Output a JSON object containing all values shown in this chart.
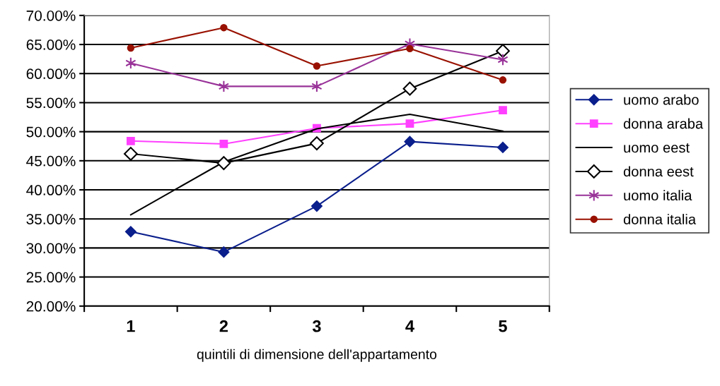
{
  "chart_data": {
    "type": "line",
    "xlabel": "quintili di dimensione dell'appartamento",
    "categories": [
      "1",
      "2",
      "3",
      "4",
      "5"
    ],
    "series": [
      {
        "name": "uomo arabo",
        "color": "#0a1e8c",
        "marker": "diamond",
        "values": [
          32.8,
          29.3,
          37.2,
          48.3,
          47.3
        ]
      },
      {
        "name": "donna araba",
        "color": "#ff40ff",
        "marker": "square",
        "values": [
          48.4,
          47.9,
          50.6,
          51.4,
          53.7
        ]
      },
      {
        "name": "uomo eest",
        "color": "#000000",
        "marker": "none",
        "values": [
          35.7,
          44.8,
          50.5,
          53.0,
          50.1
        ]
      },
      {
        "name": "donna eest",
        "color": "#000000",
        "marker": "diamond_open",
        "values": [
          46.2,
          44.6,
          48.0,
          57.4,
          63.9
        ]
      },
      {
        "name": "uomo italia",
        "color": "#993399",
        "marker": "cross",
        "values": [
          61.8,
          57.8,
          57.8,
          65.1,
          62.4
        ]
      },
      {
        "name": "donna italia",
        "color": "#991100",
        "marker": "circle",
        "values": [
          64.4,
          67.9,
          61.3,
          64.3,
          58.9
        ]
      }
    ],
    "ylim": [
      20,
      70
    ],
    "yticks": [
      {
        "value": 20,
        "label": "20.00%"
      },
      {
        "value": 25,
        "label": "25.00%"
      },
      {
        "value": 30,
        "label": "30.00%"
      },
      {
        "value": 35,
        "label": "35.00%"
      },
      {
        "value": 40,
        "label": "40.00%"
      },
      {
        "value": 45,
        "label": "45.00%"
      },
      {
        "value": 50,
        "label": "50.00%"
      },
      {
        "value": 55,
        "label": "55.00%"
      },
      {
        "value": 60,
        "label": "60.00%"
      },
      {
        "value": 65,
        "label": "65.00%"
      },
      {
        "value": 70,
        "label": "70.00%"
      }
    ],
    "grid": "y",
    "legend": "right"
  }
}
